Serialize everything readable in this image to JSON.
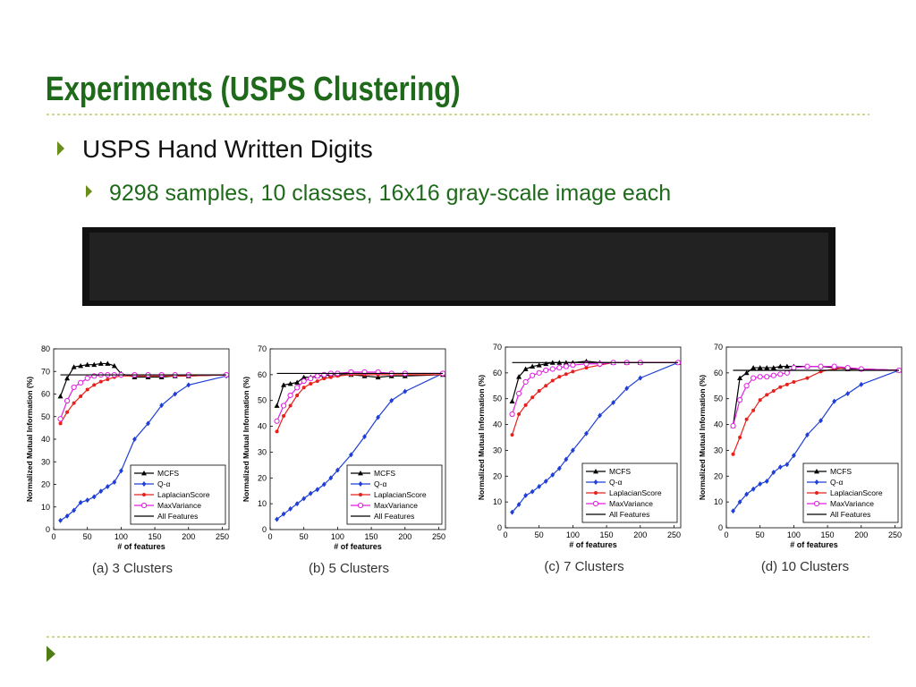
{
  "slide": {
    "title": "Experiments (USPS Clustering)",
    "bullets": [
      "USPS Hand Written Digits",
      "9298 samples, 10 classes, 16x16 gray-scale image each"
    ]
  },
  "chart_data": [
    {
      "type": "line",
      "caption": "(a) 3 Clusters",
      "xlabel": "# of features",
      "ylabel": "Normalized Mutual Information (%)",
      "x": [
        10,
        20,
        30,
        40,
        50,
        60,
        70,
        80,
        90,
        100,
        120,
        140,
        160,
        180,
        200,
        256
      ],
      "xlim": [
        0,
        260
      ],
      "xticks": [
        0,
        50,
        100,
        150,
        200,
        250
      ],
      "ylim": [
        0,
        80
      ],
      "yticks": [
        0,
        10,
        20,
        30,
        40,
        50,
        60,
        70,
        80
      ],
      "legend": "lower right",
      "series": [
        {
          "name": "MCFS",
          "color": "#000000",
          "marker": "triangle",
          "values": [
            59,
            67,
            72,
            72.5,
            73,
            73,
            73.5,
            73.5,
            72.5,
            69,
            67.5,
            67.5,
            67.5,
            68,
            68,
            68.5
          ]
        },
        {
          "name": "Q-α",
          "color": "#1f3fd6",
          "marker": "diamond",
          "values": [
            4,
            6,
            8.5,
            12,
            13,
            14.5,
            17,
            19,
            21,
            26,
            40,
            47,
            55,
            60,
            64,
            68
          ]
        },
        {
          "name": "LaplacianScore",
          "color": "#e8201c",
          "marker": "dot",
          "values": [
            47,
            52,
            56,
            59,
            62,
            64,
            65.5,
            66.5,
            67.5,
            68,
            68,
            68,
            68,
            68,
            68,
            68.5
          ]
        },
        {
          "name": "MaxVariance",
          "color": "#e21ee0",
          "marker": "circle",
          "values": [
            49,
            57,
            63,
            65,
            67,
            68,
            68.5,
            68.5,
            68.5,
            68.5,
            68.5,
            68.5,
            68.5,
            68.5,
            68.5,
            68.5
          ]
        },
        {
          "name": "All Features",
          "color": "#000000",
          "marker": "none",
          "values": [
            68.5,
            68.5,
            68.5,
            68.5,
            68.5,
            68.5,
            68.5,
            68.5,
            68.5,
            68.5,
            68.5,
            68.5,
            68.5,
            68.5,
            68.5,
            68.5
          ]
        }
      ]
    },
    {
      "type": "line",
      "caption": "(b) 5 Clusters",
      "xlabel": "# of features",
      "ylabel": "Normalized Mutual Information (%)",
      "x": [
        10,
        20,
        30,
        40,
        50,
        60,
        70,
        80,
        90,
        100,
        120,
        140,
        160,
        180,
        200,
        256
      ],
      "xlim": [
        0,
        260
      ],
      "xticks": [
        0,
        50,
        100,
        150,
        200,
        250
      ],
      "ylim": [
        0,
        70
      ],
      "yticks": [
        0,
        10,
        20,
        30,
        40,
        50,
        60,
        70
      ],
      "legend": "lower right",
      "series": [
        {
          "name": "MCFS",
          "color": "#000000",
          "marker": "triangle",
          "values": [
            48,
            56,
            56.5,
            57,
            59,
            59,
            59.5,
            59.5,
            60,
            60,
            60,
            59.5,
            59,
            59.5,
            59.5,
            60
          ]
        },
        {
          "name": "Q-α",
          "color": "#1f3fd6",
          "marker": "diamond",
          "values": [
            4,
            6,
            8,
            10,
            12,
            14,
            15.5,
            17.5,
            20,
            23,
            29,
            36,
            43.5,
            50,
            53.5,
            60.5
          ]
        },
        {
          "name": "LaplacianScore",
          "color": "#e8201c",
          "marker": "dot",
          "values": [
            38,
            44,
            48,
            52,
            55,
            56.5,
            57.5,
            58.5,
            59,
            59.5,
            60,
            60,
            60,
            60,
            60,
            60
          ]
        },
        {
          "name": "MaxVariance",
          "color": "#e21ee0",
          "marker": "circle",
          "values": [
            42,
            48,
            52,
            55,
            57.5,
            58.5,
            59.5,
            60,
            60.5,
            60.5,
            61,
            61,
            61,
            60.5,
            60.5,
            60.5
          ]
        },
        {
          "name": "All Features",
          "color": "#000000",
          "marker": "none",
          "values": [
            60.5,
            60.5,
            60.5,
            60.5,
            60.5,
            60.5,
            60.5,
            60.5,
            60.5,
            60.5,
            60.5,
            60.5,
            60.5,
            60.5,
            60.5,
            60.5
          ]
        }
      ]
    },
    {
      "type": "line",
      "caption": "(c) 7 Clusters",
      "xlabel": "# of features",
      "ylabel": "Normalized Mutual Information (%)",
      "x": [
        10,
        20,
        30,
        40,
        50,
        60,
        70,
        80,
        90,
        100,
        120,
        140,
        160,
        180,
        200,
        256
      ],
      "xlim": [
        0,
        260
      ],
      "xticks": [
        0,
        50,
        100,
        150,
        200,
        250
      ],
      "ylim": [
        0,
        70
      ],
      "yticks": [
        0,
        10,
        20,
        30,
        40,
        50,
        60,
        70
      ],
      "legend": "lower right",
      "series": [
        {
          "name": "MCFS",
          "color": "#000000",
          "marker": "triangle",
          "values": [
            49,
            58.5,
            61.5,
            62.5,
            63,
            63.5,
            64,
            64,
            64,
            64,
            64.5,
            64,
            64,
            64,
            64,
            64
          ]
        },
        {
          "name": "Q-α",
          "color": "#1f3fd6",
          "marker": "diamond",
          "values": [
            6,
            9,
            12.5,
            14,
            16,
            18,
            20.5,
            23,
            26.5,
            30,
            36.5,
            43.5,
            48.5,
            54,
            58,
            64
          ]
        },
        {
          "name": "LaplacianScore",
          "color": "#e8201c",
          "marker": "dot",
          "values": [
            36,
            44,
            47.5,
            50.5,
            53,
            55,
            57,
            58.5,
            59.5,
            60.5,
            62,
            63,
            64,
            64,
            64,
            64
          ]
        },
        {
          "name": "MaxVariance",
          "color": "#e21ee0",
          "marker": "circle",
          "values": [
            44,
            52,
            56.5,
            59,
            60,
            61,
            61.5,
            62,
            62.5,
            63,
            63.5,
            63.5,
            64,
            64,
            64,
            64
          ]
        },
        {
          "name": "All Features",
          "color": "#000000",
          "marker": "none",
          "values": [
            64,
            64,
            64,
            64,
            64,
            64,
            64,
            64,
            64,
            64,
            64,
            64,
            64,
            64,
            64,
            64
          ]
        }
      ]
    },
    {
      "type": "line",
      "caption": "(d) 10 Clusters",
      "xlabel": "# of features",
      "ylabel": "Normalized Mutual Information (%)",
      "x": [
        10,
        20,
        30,
        40,
        50,
        60,
        70,
        80,
        90,
        100,
        120,
        140,
        160,
        180,
        200,
        256
      ],
      "xlim": [
        0,
        260
      ],
      "xticks": [
        0,
        50,
        100,
        150,
        200,
        250
      ],
      "ylim": [
        0,
        70
      ],
      "yticks": [
        0,
        10,
        20,
        30,
        40,
        50,
        60,
        70
      ],
      "legend": "lower right",
      "series": [
        {
          "name": "MCFS",
          "color": "#000000",
          "marker": "triangle",
          "values": [
            39.5,
            58,
            60,
            62,
            62,
            62,
            62,
            62.5,
            62.5,
            62.5,
            62.5,
            62.5,
            62,
            61.5,
            61.5,
            61
          ]
        },
        {
          "name": "Q-α",
          "color": "#1f3fd6",
          "marker": "diamond",
          "values": [
            6.5,
            10,
            13,
            15,
            17,
            18,
            21.5,
            23.5,
            24.5,
            28,
            36,
            41.5,
            49,
            52,
            55.5,
            61
          ]
        },
        {
          "name": "LaplacianScore",
          "color": "#e8201c",
          "marker": "dot",
          "values": [
            28.5,
            35,
            42,
            45.5,
            49.5,
            51.5,
            53,
            54.5,
            55.5,
            56.5,
            58,
            60.5,
            61.5,
            62,
            61.5,
            61
          ]
        },
        {
          "name": "MaxVariance",
          "color": "#e21ee0",
          "marker": "circle",
          "values": [
            39.5,
            49.5,
            55,
            58,
            58.5,
            58.5,
            59,
            59.5,
            60,
            62,
            62.5,
            62.5,
            62.5,
            62,
            61.5,
            61
          ]
        },
        {
          "name": "All Features",
          "color": "#000000",
          "marker": "none",
          "values": [
            61,
            61,
            61,
            61,
            61,
            61,
            61,
            61,
            61,
            61,
            61,
            61,
            61,
            61,
            61,
            61
          ]
        }
      ]
    }
  ]
}
